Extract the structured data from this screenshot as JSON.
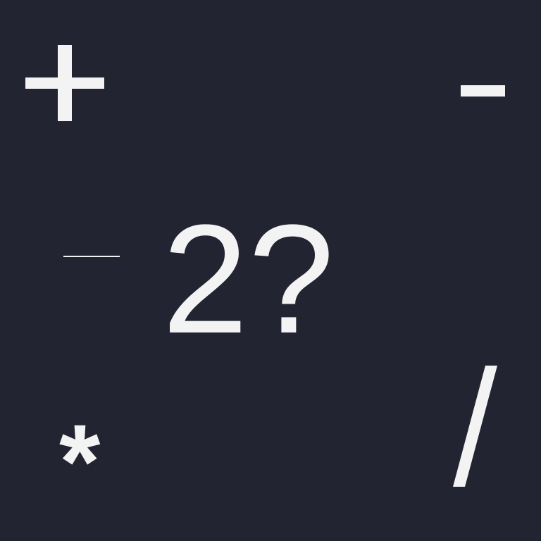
{
  "canvas": {
    "background": "#222431",
    "foreground": "#f3f3f3"
  },
  "symbols": {
    "plus": "+",
    "minus": "-",
    "minus_thin": "-",
    "question": "2?",
    "asterisk": "*",
    "slash": "/"
  }
}
